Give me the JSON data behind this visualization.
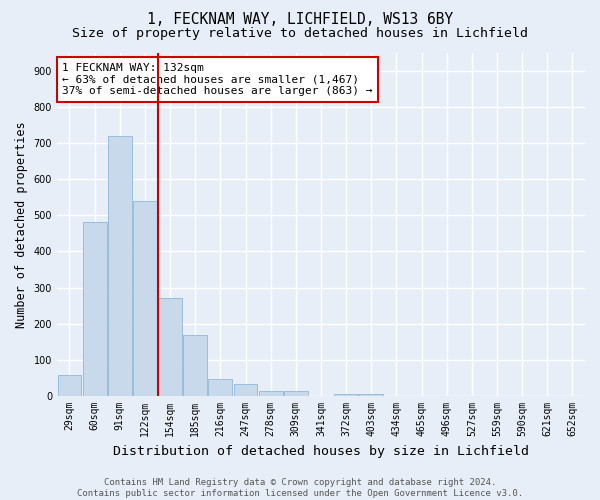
{
  "title": "1, FECKNAM WAY, LICHFIELD, WS13 6BY",
  "subtitle": "Size of property relative to detached houses in Lichfield",
  "xlabel": "Distribution of detached houses by size in Lichfield",
  "ylabel": "Number of detached properties",
  "categories": [
    "29sqm",
    "60sqm",
    "91sqm",
    "122sqm",
    "154sqm",
    "185sqm",
    "216sqm",
    "247sqm",
    "278sqm",
    "309sqm",
    "341sqm",
    "372sqm",
    "403sqm",
    "434sqm",
    "465sqm",
    "496sqm",
    "527sqm",
    "559sqm",
    "590sqm",
    "621sqm",
    "652sqm"
  ],
  "values": [
    57,
    480,
    718,
    540,
    270,
    170,
    47,
    33,
    14,
    13,
    0,
    7,
    7,
    0,
    0,
    0,
    0,
    0,
    0,
    0,
    0
  ],
  "bar_color": "#c9d9ec",
  "bar_edge_color": "#7fafd4",
  "vline_color": "#cc0000",
  "annotation_line1": "1 FECKNAM WAY: 132sqm",
  "annotation_line2": "← 63% of detached houses are smaller (1,467)",
  "annotation_line3": "37% of semi-detached houses are larger (863) →",
  "annotation_box_color": "#ffffff",
  "annotation_box_edge": "#cc0000",
  "ylim": [
    0,
    950
  ],
  "yticks": [
    0,
    100,
    200,
    300,
    400,
    500,
    600,
    700,
    800,
    900
  ],
  "footer": "Contains HM Land Registry data © Crown copyright and database right 2024.\nContains public sector information licensed under the Open Government Licence v3.0.",
  "background_color": "#e8eef8",
  "plot_background": "#e8eef8",
  "grid_color": "#ffffff",
  "title_fontsize": 10.5,
  "subtitle_fontsize": 9.5,
  "xlabel_fontsize": 9.5,
  "ylabel_fontsize": 8.5,
  "tick_fontsize": 7,
  "footer_fontsize": 6.5,
  "annotation_fontsize": 8
}
